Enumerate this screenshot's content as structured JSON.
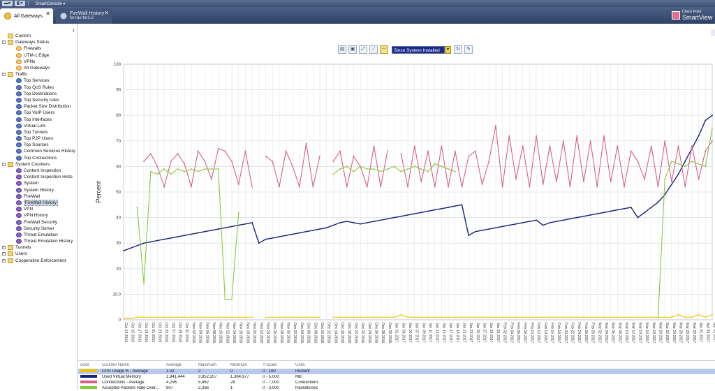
{
  "menubar": {
    "app_menu": "SmartConsole ▾"
  },
  "tabs": [
    {
      "label": "All Gateways",
      "sublabel": ""
    },
    {
      "label": "FireWall History",
      "sublabel": "fw-ras-trn1-2"
    }
  ],
  "brand": {
    "line1": "Check Point",
    "line2": "SmartView"
  },
  "tree": [
    {
      "label": "Custom",
      "level": 0,
      "icon": "folder-icon",
      "expander": ""
    },
    {
      "label": "Gateways Status",
      "level": 0,
      "icon": "folder-icon",
      "expander": "-"
    },
    {
      "label": "Firewalls",
      "level": 1,
      "icon": "gateway-icon",
      "expander": ""
    },
    {
      "label": "UTM-1 Edge",
      "level": 1,
      "icon": "gateway-icon",
      "expander": ""
    },
    {
      "label": "VPNs",
      "level": 1,
      "icon": "gateway-icon",
      "expander": ""
    },
    {
      "label": "All Gateways",
      "level": 1,
      "icon": "gateway-icon",
      "expander": ""
    },
    {
      "label": "Traffic",
      "level": 0,
      "icon": "folder-icon",
      "expander": "-"
    },
    {
      "label": "Top Services",
      "level": 1,
      "icon": "report-icon",
      "expander": ""
    },
    {
      "label": "Top QoS Rules",
      "level": 1,
      "icon": "report-icon",
      "expander": ""
    },
    {
      "label": "Top Destinations",
      "level": 1,
      "icon": "report-icon",
      "expander": ""
    },
    {
      "label": "Top Security rules",
      "level": 1,
      "icon": "report-icon",
      "expander": ""
    },
    {
      "label": "Packet Size Distribution",
      "level": 1,
      "icon": "report-icon",
      "expander": ""
    },
    {
      "label": "Top VoIP Users",
      "level": 1,
      "icon": "report-icon",
      "expander": ""
    },
    {
      "label": "Top Interfaces",
      "level": 1,
      "icon": "report-icon",
      "expander": ""
    },
    {
      "label": "Virtual Link",
      "level": 1,
      "icon": "report-icon",
      "expander": ""
    },
    {
      "label": "Top Tunnels",
      "level": 1,
      "icon": "report-icon",
      "expander": ""
    },
    {
      "label": "Top P2P Users",
      "level": 1,
      "icon": "report-icon",
      "expander": ""
    },
    {
      "label": "Top Sources",
      "level": 1,
      "icon": "report-icon",
      "expander": ""
    },
    {
      "label": "Common Services History",
      "level": 1,
      "icon": "report-icon",
      "expander": ""
    },
    {
      "label": "Top Connections",
      "level": 1,
      "icon": "report-icon",
      "expander": ""
    },
    {
      "label": "System Counters",
      "level": 0,
      "icon": "folder-icon",
      "expander": "-"
    },
    {
      "label": "Content Inspection",
      "level": 1,
      "icon": "counter-icon",
      "expander": ""
    },
    {
      "label": "Content Inspection Histo",
      "level": 1,
      "icon": "counter-icon",
      "expander": ""
    },
    {
      "label": "System",
      "level": 1,
      "icon": "counter-icon",
      "expander": ""
    },
    {
      "label": "System History",
      "level": 1,
      "icon": "counter-icon",
      "expander": ""
    },
    {
      "label": "FireWall",
      "level": 1,
      "icon": "counter-icon",
      "expander": ""
    },
    {
      "label": "FireWall History",
      "level": 1,
      "icon": "counter-icon",
      "expander": "",
      "selected": true
    },
    {
      "label": "VPN",
      "level": 1,
      "icon": "counter-icon",
      "expander": ""
    },
    {
      "label": "VPN History",
      "level": 1,
      "icon": "counter-icon",
      "expander": ""
    },
    {
      "label": "FireWall Security",
      "level": 1,
      "icon": "counter-icon",
      "expander": ""
    },
    {
      "label": "Security Server",
      "level": 1,
      "icon": "counter-icon",
      "expander": ""
    },
    {
      "label": "Threat Emulation",
      "level": 1,
      "icon": "counter-icon",
      "expander": ""
    },
    {
      "label": "Threat Emulation History",
      "level": 1,
      "icon": "counter-icon",
      "expander": ""
    },
    {
      "label": "Tunnels",
      "level": 0,
      "icon": "folder-icon",
      "expander": "+"
    },
    {
      "label": "Users",
      "level": 0,
      "icon": "folder-icon",
      "expander": "+"
    },
    {
      "label": "Cooperative Enforcement",
      "level": 0,
      "icon": "folder-icon",
      "expander": "+"
    }
  ],
  "toolbar": {
    "timeframe_value": "Since System Installed",
    "icons": [
      "table-view-icon",
      "save-icon",
      "zoom-icon",
      "chart-type-icon",
      "line-chart-icon"
    ]
  },
  "chart_data": {
    "type": "line",
    "ylabel": "Percent",
    "ylim": [
      0,
      100
    ],
    "yticks": [
      "0",
      "10.0",
      "20",
      "30",
      "40",
      "50",
      "60",
      "70",
      "80",
      "90",
      "100"
    ],
    "xlabels": [
      "Oct 13 2016",
      "Oct 15 2016",
      "Oct 17 2016",
      "Oct 19 2016",
      "Oct 21 2016",
      "Oct 23 2016",
      "Oct 25 2016",
      "Oct 27 2016",
      "Oct 29 2016",
      "Oct 31 2016",
      "Nov 02 2016",
      "Nov 04 2016",
      "Nov 06 2016",
      "Nov 08 2016",
      "Nov 10 2016",
      "Nov 12 2016",
      "Nov 14 2016",
      "Nov 16 2016",
      "Nov 18 2016",
      "Nov 20 2016",
      "Nov 22 2016",
      "Nov 24 2016",
      "Nov 26 2016",
      "Nov 28 2016",
      "Nov 30 2016",
      "Dec 02 2016",
      "Dec 04 2016",
      "Dec 06 2016",
      "Dec 08 2016",
      "Dec 10 2016",
      "Dec 12 2016",
      "Dec 14 2016",
      "Dec 16 2016",
      "Dec 18 2016",
      "Dec 20 2016",
      "Dec 22 2016",
      "Dec 24 2016",
      "Dec 26 2016",
      "Dec 28 2016",
      "Dec 30 2016",
      "Jan 01 2017",
      "Jan 03 2017",
      "Jan 05 2017",
      "Jan 07 2017",
      "Jan 09 2017",
      "Jan 11 2017",
      "Jan 13 2017",
      "Jan 15 2017",
      "Jan 17 2017",
      "Jan 19 2017",
      "Jan 21 2017",
      "Jan 23 2017",
      "Jan 25 2017",
      "Jan 27 2017",
      "Jan 29 2017",
      "Jan 31 2017",
      "Feb 02 2017",
      "Feb 04 2017",
      "Feb 06 2017",
      "Feb 08 2017",
      "Feb 10 2017",
      "Feb 12 2017",
      "Feb 14 2017",
      "Feb 16 2017",
      "Feb 18 2017",
      "Feb 20 2017",
      "Feb 22 2017",
      "Feb 24 2017",
      "Feb 26 2017",
      "Feb 28 2017",
      "Mar 02 2017",
      "Mar 04 2017",
      "Mar 06 2017",
      "Mar 08 2017",
      "Mar 10 2017",
      "Mar 12 2017",
      "Mar 14 2017",
      "Mar 16 2017",
      "Mar 18 2017",
      "Mar 20 2017",
      "Mar 22 2017",
      "Mar 24 2017",
      "Mar 26 2017",
      "Mar 28 2017",
      "Mar 30 2017",
      "Apr 01 2017",
      "Apr 03 2017",
      "Apr 05 2017"
    ],
    "series": [
      {
        "name": "CPU Usage % - Average",
        "color": "#f2c200",
        "values": [
          0.5,
          0.5,
          1,
          1,
          1,
          1,
          1,
          1,
          1,
          1,
          1,
          1,
          1,
          1,
          1,
          1,
          1,
          1,
          1,
          1,
          null,
          1,
          1,
          1,
          1,
          1,
          1,
          1,
          1,
          1,
          null,
          1,
          1,
          1,
          1,
          1,
          1,
          1,
          1,
          1,
          1,
          2,
          1,
          1,
          1,
          1,
          1,
          1,
          1,
          1,
          1,
          1,
          1,
          1,
          1,
          1,
          1,
          1,
          1,
          1,
          1,
          1,
          1,
          1,
          1,
          1,
          1,
          1,
          1,
          1,
          1,
          1,
          1,
          1,
          1,
          1,
          1,
          1,
          1,
          1,
          1,
          1,
          2,
          1,
          1,
          2,
          1,
          2
        ]
      },
      {
        "name": "Used Virtual Memory",
        "color": "#1a1f7a",
        "values": [
          27,
          28,
          29,
          30,
          30.5,
          31,
          31.5,
          32,
          32.5,
          33,
          33.5,
          34,
          34.5,
          35,
          35.5,
          36,
          36.5,
          37,
          37.5,
          38,
          30,
          31.5,
          32,
          32.5,
          33,
          33.5,
          34,
          34.5,
          35,
          35.5,
          36,
          37,
          38,
          38.5,
          38,
          37.5,
          38,
          38.5,
          39,
          39.5,
          40,
          40.5,
          41,
          41.5,
          42,
          42.5,
          43,
          43.5,
          44,
          44.5,
          45,
          33,
          34.5,
          35,
          35.5,
          36,
          36.5,
          37,
          37.5,
          38,
          38.5,
          39,
          37,
          38,
          38.5,
          39,
          39.5,
          40,
          40.5,
          41,
          41.5,
          42,
          42.5,
          43,
          43.5,
          44,
          40,
          42,
          44,
          46,
          49,
          53,
          57,
          62,
          67,
          72,
          78,
          80
        ]
      },
      {
        "name": "Connections - Average",
        "color": "#d95f87",
        "values": [
          null,
          null,
          null,
          62,
          65,
          60,
          52,
          62,
          65,
          61,
          52,
          66,
          62,
          55,
          67,
          66,
          62,
          53,
          66,
          52,
          null,
          64,
          62,
          52,
          66,
          60,
          52,
          69,
          52,
          64,
          null,
          62,
          66,
          52,
          64,
          60,
          52,
          68,
          52,
          66,
          null,
          65,
          52,
          68,
          54,
          66,
          52,
          68,
          52,
          66,
          52,
          64,
          66,
          53,
          62,
          76,
          52,
          72,
          55,
          68,
          52,
          72,
          53,
          68,
          54,
          70,
          52,
          72,
          54,
          70,
          52,
          72,
          54,
          68,
          52,
          66,
          62,
          55,
          68,
          52,
          70,
          54,
          68,
          52,
          68,
          55,
          66,
          70
        ]
      },
      {
        "name": "Accepted Packets Rate Over...",
        "color": "#8ac83c",
        "values": [
          null,
          null,
          44,
          14,
          58,
          57,
          59,
          57,
          59,
          58,
          59,
          58,
          59,
          59,
          59,
          8,
          8,
          42,
          null,
          null,
          null,
          null,
          null,
          null,
          null,
          null,
          null,
          null,
          null,
          null,
          null,
          57,
          59,
          60,
          58,
          60,
          59,
          59,
          58,
          59,
          60,
          58,
          59,
          60,
          59,
          58,
          61,
          60,
          59,
          58,
          null,
          null,
          null,
          null,
          null,
          null,
          null,
          null,
          null,
          null,
          null,
          null,
          null,
          null,
          null,
          null,
          null,
          null,
          null,
          null,
          null,
          null,
          null,
          null,
          null,
          null,
          null,
          null,
          null,
          1,
          55,
          62,
          61,
          60,
          62,
          61,
          60,
          75
        ]
      }
    ]
  },
  "legend": {
    "headers": {
      "color": "color",
      "name": "Counter Name",
      "avg": "Average",
      "max": "Maximum",
      "min": "Minimum",
      "yscale": "Y-Scale",
      "units": "Units"
    },
    "rows": [
      {
        "color": "#f2c200",
        "name": "CPU Usage % - Average",
        "avg": "1.02",
        "max": "2",
        "min": "0",
        "yscale": "0 - 100",
        "units": "Percent"
      },
      {
        "color": "#1a1f7a",
        "name": "Used Virtual Memory",
        "avg": "1,941,444",
        "max": "3,952,207",
        "min": "1,364,977",
        "yscale": "0 - 5,000",
        "units": "MB"
      },
      {
        "color": "#d95f87",
        "name": "Connections - Average",
        "avg": "4,296",
        "max": "5,462",
        "min": "28",
        "yscale": "0 - 7,000",
        "units": "Connections"
      },
      {
        "color": "#8ac83c",
        "name": "Accepted Packets Rate Over...",
        "avg": "907",
        "max": "2,336",
        "min": "1",
        "yscale": "0 - 3,000",
        "units": "Packets/sec"
      }
    ]
  }
}
